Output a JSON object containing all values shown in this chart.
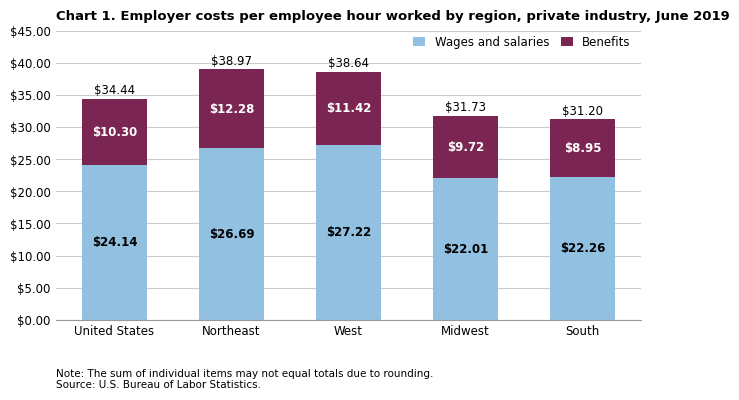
{
  "title": "Chart 1. Employer costs per employee hour worked by region, private industry, June 2019",
  "categories": [
    "United States",
    "Northeast",
    "West",
    "Midwest",
    "South"
  ],
  "wages": [
    24.14,
    26.69,
    27.22,
    22.01,
    22.26
  ],
  "benefits": [
    10.3,
    12.28,
    11.42,
    9.72,
    8.95
  ],
  "totals": [
    34.44,
    38.97,
    38.64,
    31.73,
    31.2
  ],
  "wages_color": "#92c0e0",
  "benefits_color": "#7b2652",
  "wages_label": "Wages and salaries",
  "benefits_label": "Benefits",
  "ylim": [
    0,
    45
  ],
  "yticks": [
    0,
    5,
    10,
    15,
    20,
    25,
    30,
    35,
    40,
    45
  ],
  "note": "Note: The sum of individual items may not equal totals due to rounding.\nSource: U.S. Bureau of Labor Statistics.",
  "title_fontsize": 9.5,
  "label_fontsize": 8.5,
  "tick_fontsize": 8.5,
  "note_fontsize": 7.5,
  "bar_width": 0.55,
  "background_color": "#ffffff",
  "grid_color": "#cccccc"
}
